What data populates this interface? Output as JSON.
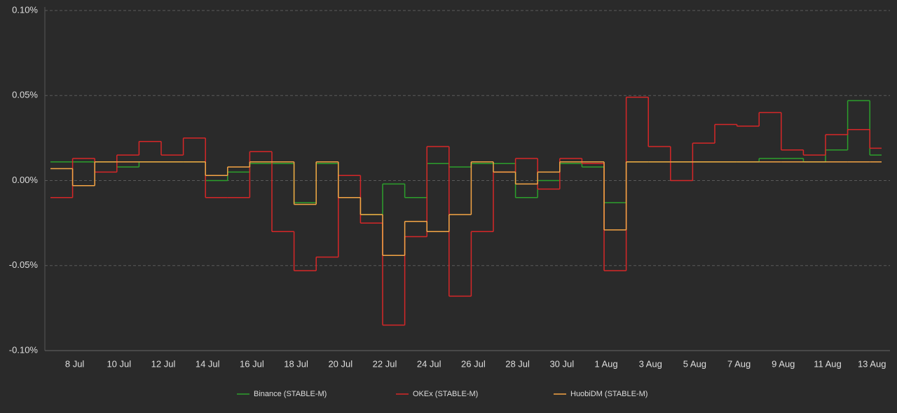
{
  "chart_data": {
    "type": "step-line",
    "categories": [
      null,
      "8 Jul",
      null,
      "10 Jul",
      null,
      "12 Jul",
      null,
      "14 Jul",
      null,
      "16 Jul",
      null,
      "18 Jul",
      null,
      "20 Jul",
      null,
      "22 Jul",
      null,
      "24 Jul",
      null,
      "26 Jul",
      null,
      "28 Jul",
      null,
      "30 Jul",
      null,
      "1 Aug",
      null,
      "3 Aug",
      null,
      "5 Aug",
      null,
      "7 Aug",
      null,
      "9 Aug",
      null,
      "11 Aug",
      null,
      "13 Aug"
    ],
    "series": [
      {
        "name": "Binance (STABLE-M)",
        "color": "#2ca02c",
        "values": [
          0.011,
          0.011,
          0.011,
          0.008,
          0.011,
          0.011,
          0.011,
          0.0,
          0.005,
          0.01,
          0.01,
          -0.013,
          0.01,
          -0.01,
          -0.02,
          -0.002,
          -0.01,
          0.01,
          0.008,
          0.01,
          0.01,
          -0.01,
          0.0,
          0.01,
          0.008,
          -0.013,
          0.011,
          0.011,
          0.011,
          0.011,
          0.011,
          0.011,
          0.013,
          0.013,
          0.011,
          0.018,
          0.047,
          0.015
        ]
      },
      {
        "name": "OKEx (STABLE-M)",
        "color": "#d62728",
        "values": [
          -0.01,
          0.013,
          0.005,
          0.015,
          0.023,
          0.015,
          0.025,
          -0.01,
          -0.01,
          0.017,
          -0.03,
          -0.053,
          -0.045,
          0.003,
          -0.025,
          -0.085,
          -0.033,
          0.02,
          -0.068,
          -0.03,
          0.005,
          0.013,
          -0.005,
          0.013,
          0.01,
          -0.053,
          0.049,
          0.02,
          0.0,
          0.022,
          0.033,
          0.032,
          0.04,
          0.018,
          0.015,
          0.027,
          0.03,
          0.019
        ]
      },
      {
        "name": "HuobiDM (STABLE-M)",
        "color": "#f5a545",
        "values": [
          0.007,
          -0.003,
          0.011,
          0.011,
          0.011,
          0.011,
          0.011,
          0.003,
          0.008,
          0.011,
          0.011,
          -0.014,
          0.011,
          -0.01,
          -0.02,
          -0.044,
          -0.024,
          -0.03,
          -0.02,
          0.011,
          0.005,
          -0.002,
          0.005,
          0.011,
          0.011,
          -0.029,
          0.011,
          0.011,
          0.011,
          0.011,
          0.011,
          0.011,
          0.011,
          0.011,
          0.011,
          0.011,
          0.011,
          0.011
        ]
      }
    ],
    "ylim": [
      -0.1,
      0.1
    ],
    "yticks": [
      {
        "value": -0.1,
        "label": "-0.10%"
      },
      {
        "value": -0.05,
        "label": "-0.05%"
      },
      {
        "value": 0,
        "label": "0.00%"
      },
      {
        "value": 0.05,
        "label": "0.05%"
      },
      {
        "value": 0.1,
        "label": "0.10%"
      }
    ],
    "grid": true,
    "legend": "bottom"
  }
}
